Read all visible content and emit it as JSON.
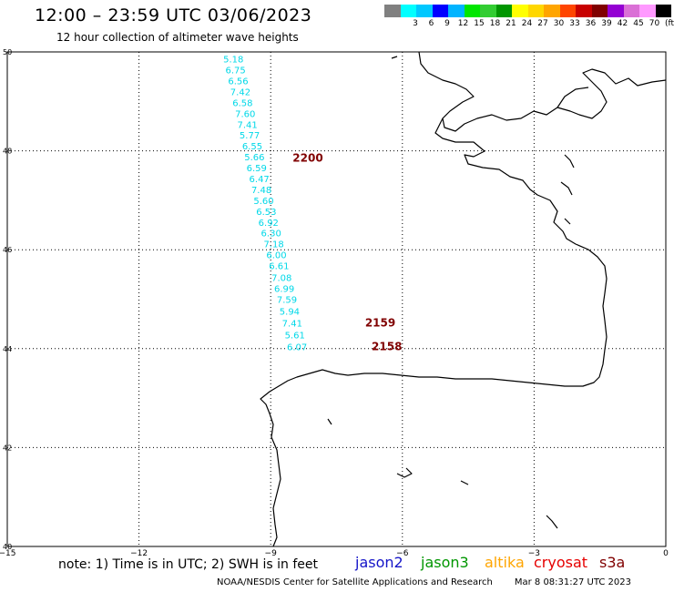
{
  "header": {
    "title": "12:00 – 23:59 UTC 03/06/2023",
    "subtitle": "12 hour collection of altimeter wave heights"
  },
  "legend": {
    "unit": "(ft)",
    "swatches": [
      {
        "color": "#808080",
        "label": ""
      },
      {
        "color": "#00ffff",
        "label": "3"
      },
      {
        "color": "#00c8ff",
        "label": "6"
      },
      {
        "color": "#0000ff",
        "label": "9"
      },
      {
        "color": "#00b4ff",
        "label": "12"
      },
      {
        "color": "#00e600",
        "label": "15"
      },
      {
        "color": "#32cd32",
        "label": "18"
      },
      {
        "color": "#009600",
        "label": "21"
      },
      {
        "color": "#ffff00",
        "label": "24"
      },
      {
        "color": "#ffd700",
        "label": "27"
      },
      {
        "color": "#ffa500",
        "label": "30"
      },
      {
        "color": "#ff4500",
        "label": "33"
      },
      {
        "color": "#c80000",
        "label": "36"
      },
      {
        "color": "#800000",
        "label": "39"
      },
      {
        "color": "#9400d3",
        "label": "42"
      },
      {
        "color": "#da70d6",
        "label": "45"
      },
      {
        "color": "#ff99ff",
        "label": "70"
      },
      {
        "color": "#000000",
        "label": ""
      }
    ]
  },
  "map": {
    "lon_range": [
      -15,
      0
    ],
    "lat_range": [
      40,
      50
    ],
    "x_ticks": [
      {
        "value": -15,
        "label": "−15"
      },
      {
        "value": -12,
        "label": "−12"
      },
      {
        "value": -9,
        "label": "−9"
      },
      {
        "value": -6,
        "label": "−6"
      },
      {
        "value": -3,
        "label": "−3"
      },
      {
        "value": 0,
        "label": "0"
      }
    ],
    "y_ticks": [
      {
        "value": 50,
        "label": "50"
      },
      {
        "value": 48,
        "label": "48"
      },
      {
        "value": 46,
        "label": "46"
      },
      {
        "value": 44,
        "label": "44"
      },
      {
        "value": 42,
        "label": "42"
      },
      {
        "value": 40,
        "label": "40"
      }
    ],
    "track_color": "#00d8e8",
    "time_color": "#800000",
    "track": [
      {
        "lon": -9.85,
        "lat": 49.86,
        "swh": "5.18"
      },
      {
        "lon": -9.8,
        "lat": 49.64,
        "swh": "6.75"
      },
      {
        "lon": -9.74,
        "lat": 49.42,
        "swh": "6.56"
      },
      {
        "lon": -9.69,
        "lat": 49.2,
        "swh": "7.42"
      },
      {
        "lon": -9.64,
        "lat": 48.98,
        "swh": "6.58"
      },
      {
        "lon": -9.58,
        "lat": 48.76,
        "swh": "7.60"
      },
      {
        "lon": -9.53,
        "lat": 48.54,
        "swh": "7.41"
      },
      {
        "lon": -9.48,
        "lat": 48.32,
        "swh": "5.77"
      },
      {
        "lon": -9.42,
        "lat": 48.1,
        "swh": "6.55"
      },
      {
        "lon": -9.37,
        "lat": 47.88,
        "swh": "5.66"
      },
      {
        "lon": -9.32,
        "lat": 47.66,
        "swh": "6.59"
      },
      {
        "lon": -9.26,
        "lat": 47.44,
        "swh": "6.47"
      },
      {
        "lon": -9.21,
        "lat": 47.22,
        "swh": "7.48"
      },
      {
        "lon": -9.16,
        "lat": 47.0,
        "swh": "5.60"
      },
      {
        "lon": -9.1,
        "lat": 46.78,
        "swh": "6.53"
      },
      {
        "lon": -9.05,
        "lat": 46.56,
        "swh": "6.92"
      },
      {
        "lon": -8.99,
        "lat": 46.34,
        "swh": "6.30"
      },
      {
        "lon": -8.93,
        "lat": 46.12,
        "swh": "7.18"
      },
      {
        "lon": -8.87,
        "lat": 45.9,
        "swh": "6.00"
      },
      {
        "lon": -8.81,
        "lat": 45.68,
        "swh": "6.61"
      },
      {
        "lon": -8.75,
        "lat": 45.44,
        "swh": "7.08"
      },
      {
        "lon": -8.69,
        "lat": 45.22,
        "swh": "6.99"
      },
      {
        "lon": -8.63,
        "lat": 45.0,
        "swh": "7.59"
      },
      {
        "lon": -8.57,
        "lat": 44.76,
        "swh": "5.94"
      },
      {
        "lon": -8.51,
        "lat": 44.52,
        "swh": "7.41"
      },
      {
        "lon": -8.45,
        "lat": 44.28,
        "swh": "5.61"
      },
      {
        "lon": -8.4,
        "lat": 44.04,
        "swh": "6.07"
      }
    ],
    "time_labels": [
      {
        "lon": -8.5,
        "lat": 47.85,
        "text": "2200"
      },
      {
        "lon": -6.85,
        "lat": 44.52,
        "text": "2159"
      },
      {
        "lon": -6.7,
        "lat": 44.04,
        "text": "2158"
      }
    ]
  },
  "footer": {
    "note": "note:  1) Time is in UTC;  2) SWH is in feet",
    "satellites": [
      {
        "name": "jason2",
        "color": "#1414c8"
      },
      {
        "name": "jason3",
        "color": "#009600"
      },
      {
        "name": "altika",
        "color": "#ffa500"
      },
      {
        "name": "cryosat",
        "color": "#e60000"
      },
      {
        "name": "s3a",
        "color": "#800000"
      }
    ],
    "credit": "NOAA/NESDIS Center for Satellite Applications and Research",
    "timestamp": "Mar  8 08:31:27 UTC 2023"
  }
}
